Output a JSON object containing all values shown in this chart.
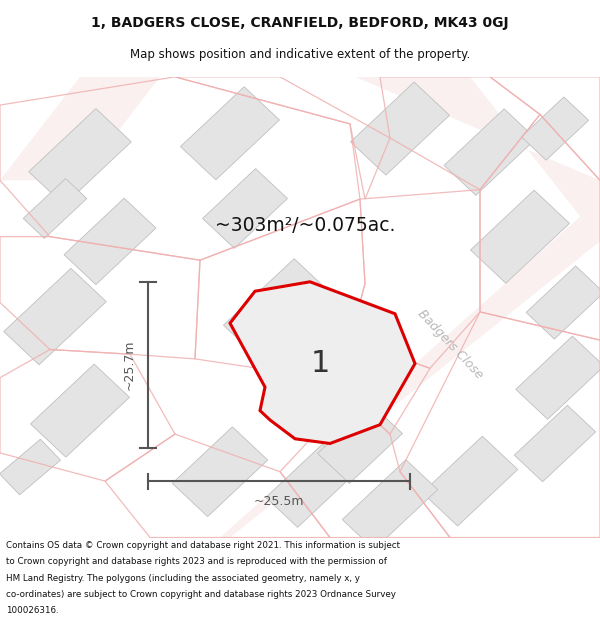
{
  "title_line1": "1, BADGERS CLOSE, CRANFIELD, BEDFORD, MK43 0GJ",
  "title_line2": "Map shows position and indicative extent of the property.",
  "area_label": "~303m²/~0.075ac.",
  "property_number": "1",
  "dim_vertical": "~25.7m",
  "dim_horizontal": "~25.5m",
  "street_label": "Badgers Close",
  "footer_lines": [
    "Contains OS data © Crown copyright and database right 2021. This information is subject",
    "to Crown copyright and database rights 2023 and is reproduced with the permission of",
    "HM Land Registry. The polygons (including the associated geometry, namely x, y",
    "co-ordinates) are subject to Crown copyright and database rights 2023 Ordnance Survey",
    "100026316."
  ],
  "map_bg": "#ffffff",
  "property_fill": "#eeeeee",
  "property_edge": "#dd0000",
  "building_fill": "#e4e4e4",
  "building_edge": "#c0c0c0",
  "plot_outline_color": "#f0b0b0",
  "dim_color": "#555555",
  "title_color": "#111111",
  "footer_color": "#111111",
  "area_label_color": "#111111",
  "street_label_color": "#b8b8b8",
  "property_number_color": "#333333",
  "road_band_color": "#f8e8e8",
  "divider_color": "#cccccc"
}
